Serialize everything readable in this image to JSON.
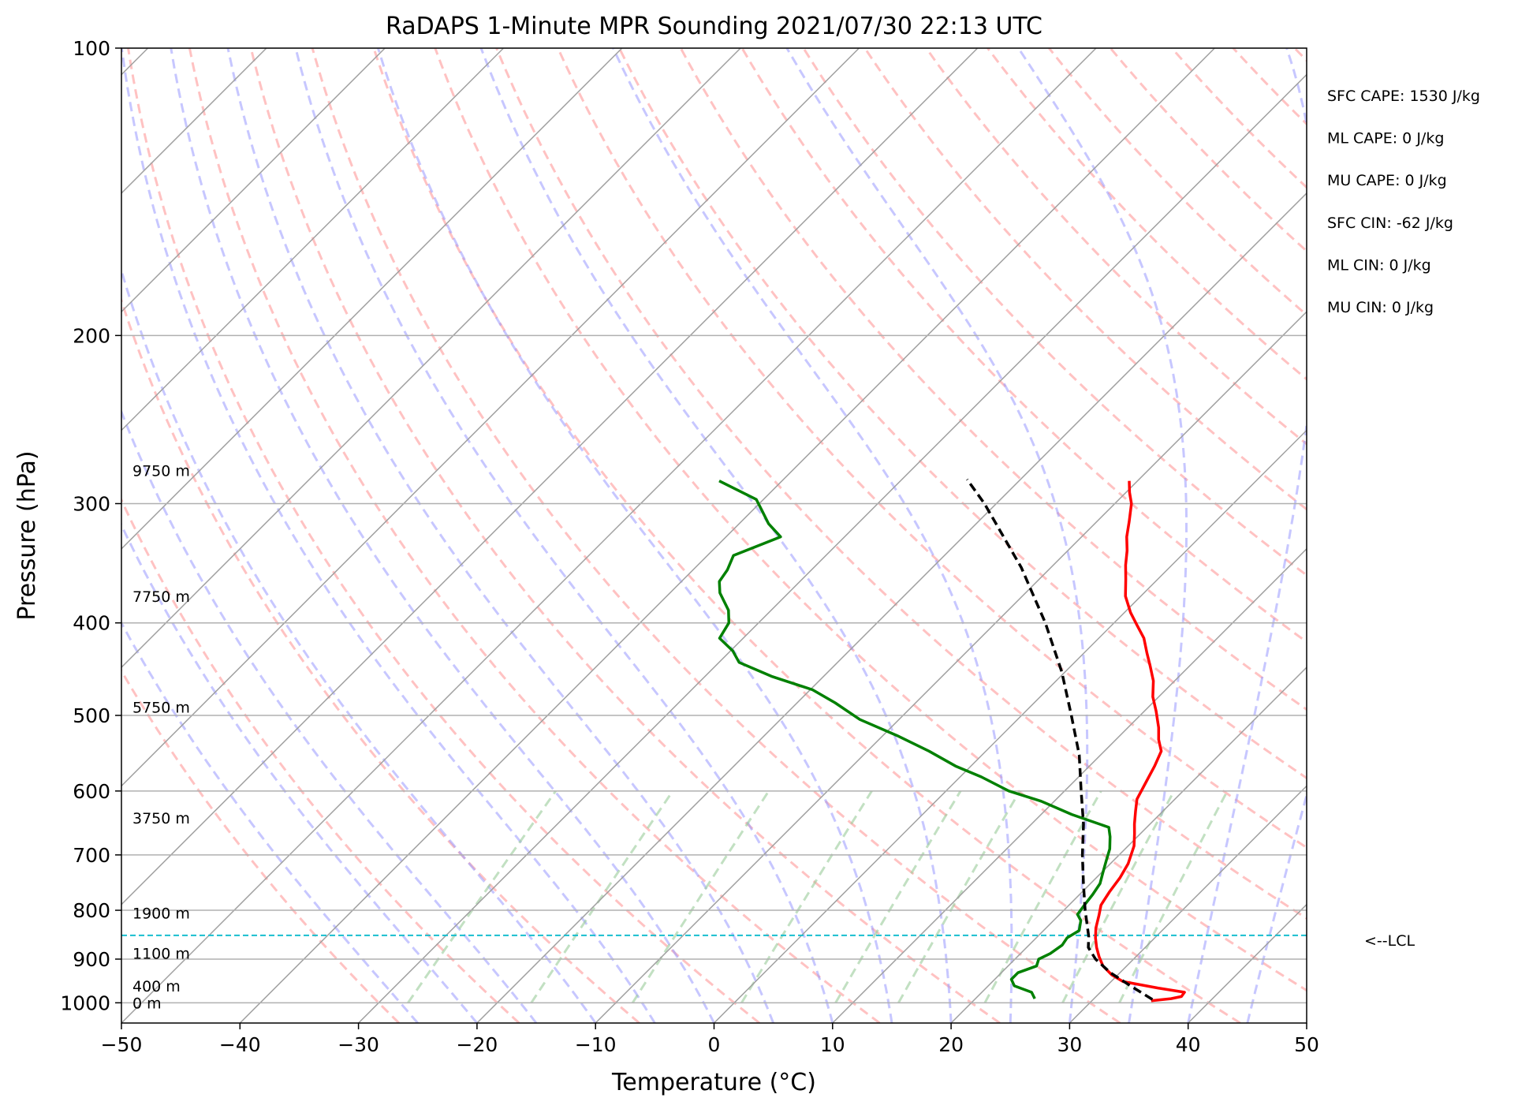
{
  "chart_data": {
    "type": "line",
    "subtype": "skew-T log-p",
    "title": "RaDAPS 1-Minute MPR Sounding 2021/07/30 22:13 UTC",
    "xlabel": "Temperature (°C)",
    "ylabel": "Pressure (hPa)",
    "xlim": [
      -50,
      50
    ],
    "ylim": [
      1050,
      100
    ],
    "y_scale": "log",
    "x_ticks": [
      "−50",
      "−40",
      "−30",
      "−20",
      "−10",
      "0",
      "10",
      "20",
      "30",
      "40",
      "50"
    ],
    "y_ticks": [
      "100",
      "200",
      "300",
      "400",
      "500",
      "600",
      "700",
      "800",
      "900",
      "1000"
    ],
    "grid": true,
    "colors": {
      "temperature": "#ff0000",
      "dewpoint": "#008000",
      "parcel": "#000000",
      "lcl_line": "#17becf",
      "dry_adiabats": "#ff9999",
      "moist_adiabats": "#9999ff",
      "mixing_ratio": "#99cc99",
      "isotherms": "#a0a0a0"
    },
    "series": [
      {
        "key": "temperature",
        "points": [
          [
            995,
            35.0
          ],
          [
            990,
            36.5
          ],
          [
            985,
            37.2
          ],
          [
            975,
            37.1
          ],
          [
            965,
            34.5
          ],
          [
            950,
            31.0
          ],
          [
            935,
            29.5
          ],
          [
            915,
            28.0
          ],
          [
            895,
            26.9
          ],
          [
            875,
            25.9
          ],
          [
            855,
            25.0
          ],
          [
            835,
            24.2
          ],
          [
            810,
            23.4
          ],
          [
            790,
            22.7
          ],
          [
            765,
            22.3
          ],
          [
            740,
            22.0
          ],
          [
            715,
            21.5
          ],
          [
            700,
            21.0
          ],
          [
            685,
            20.5
          ],
          [
            665,
            19.5
          ],
          [
            650,
            18.7
          ],
          [
            630,
            17.7
          ],
          [
            612,
            16.8
          ],
          [
            590,
            16.2
          ],
          [
            565,
            15.5
          ],
          [
            545,
            14.8
          ],
          [
            530,
            13.6
          ],
          [
            515,
            12.6
          ],
          [
            495,
            11.0
          ],
          [
            478,
            9.5
          ],
          [
            460,
            8.2
          ],
          [
            444,
            6.7
          ],
          [
            430,
            5.3
          ],
          [
            415,
            3.8
          ],
          [
            402,
            2.1
          ],
          [
            390,
            0.5
          ],
          [
            375,
            -1.3
          ],
          [
            360,
            -2.7
          ],
          [
            348,
            -3.9
          ],
          [
            336,
            -5.0
          ],
          [
            325,
            -6.2
          ],
          [
            313,
            -7.3
          ],
          [
            300,
            -8.6
          ],
          [
            292,
            -9.7
          ],
          [
            284,
            -10.7
          ]
        ]
      },
      {
        "key": "dewpoint",
        "points": [
          [
            990,
            25.0
          ],
          [
            975,
            24.2
          ],
          [
            960,
            22.2
          ],
          [
            945,
            21.4
          ],
          [
            930,
            21.4
          ],
          [
            915,
            22.4
          ],
          [
            900,
            22.0
          ],
          [
            888,
            22.5
          ],
          [
            870,
            22.8
          ],
          [
            855,
            22.6
          ],
          [
            840,
            23.0
          ],
          [
            820,
            22.3
          ],
          [
            808,
            21.5
          ],
          [
            790,
            21.3
          ],
          [
            770,
            21.1
          ],
          [
            750,
            20.8
          ],
          [
            730,
            20.1
          ],
          [
            710,
            19.4
          ],
          [
            690,
            18.7
          ],
          [
            670,
            17.7
          ],
          [
            655,
            16.8
          ],
          [
            635,
            12.6
          ],
          [
            615,
            8.9
          ],
          [
            600,
            5.3
          ],
          [
            580,
            1.8
          ],
          [
            565,
            -1.3
          ],
          [
            545,
            -4.8
          ],
          [
            525,
            -8.8
          ],
          [
            505,
            -13.3
          ],
          [
            485,
            -16.8
          ],
          [
            470,
            -19.8
          ],
          [
            455,
            -24.4
          ],
          [
            440,
            -28.3
          ],
          [
            428,
            -29.8
          ],
          [
            415,
            -32.0
          ],
          [
            400,
            -32.5
          ],
          [
            388,
            -33.6
          ],
          [
            372,
            -35.8
          ],
          [
            362,
            -36.8
          ],
          [
            352,
            -37.1
          ],
          [
            340,
            -37.8
          ],
          [
            325,
            -35.4
          ],
          [
            315,
            -37.5
          ],
          [
            305,
            -39.2
          ],
          [
            297,
            -40.6
          ],
          [
            284,
            -45.3
          ]
        ]
      },
      {
        "key": "parcel",
        "points": [
          [
            992,
            35.0
          ],
          [
            960,
            32.0
          ],
          [
            930,
            29.2
          ],
          [
            900,
            26.8
          ],
          [
            875,
            25.2
          ],
          [
            852,
            24.3
          ],
          [
            800,
            21.8
          ],
          [
            750,
            19.4
          ],
          [
            700,
            16.9
          ],
          [
            650,
            14.4
          ],
          [
            600,
            11.4
          ],
          [
            550,
            8.2
          ],
          [
            500,
            4.2
          ],
          [
            450,
            -0.3
          ],
          [
            400,
            -5.8
          ],
          [
            350,
            -12.5
          ],
          [
            300,
            -21.0
          ],
          [
            283,
            -24.5
          ]
        ]
      }
    ],
    "lcl_pressure": 850,
    "lcl_label": "<--LCL",
    "height_labels": [
      {
        "p": 1000,
        "text": "0 m"
      },
      {
        "p": 960,
        "text": "400 m"
      },
      {
        "p": 887,
        "text": "1100 m"
      },
      {
        "p": 805,
        "text": "1900 m"
      },
      {
        "p": 640,
        "text": "3750 m"
      },
      {
        "p": 490,
        "text": "5750 m"
      },
      {
        "p": 375,
        "text": "7750 m"
      },
      {
        "p": 277,
        "text": "9750 m"
      }
    ],
    "indices": [
      "SFC CAPE: 1530 J/kg",
      "ML CAPE: 0 J/kg",
      "MU CAPE: 0 J/kg",
      "SFC CIN: -62 J/kg",
      "ML CIN: 0 J/kg",
      "MU CIN: 0 J/kg"
    ]
  }
}
